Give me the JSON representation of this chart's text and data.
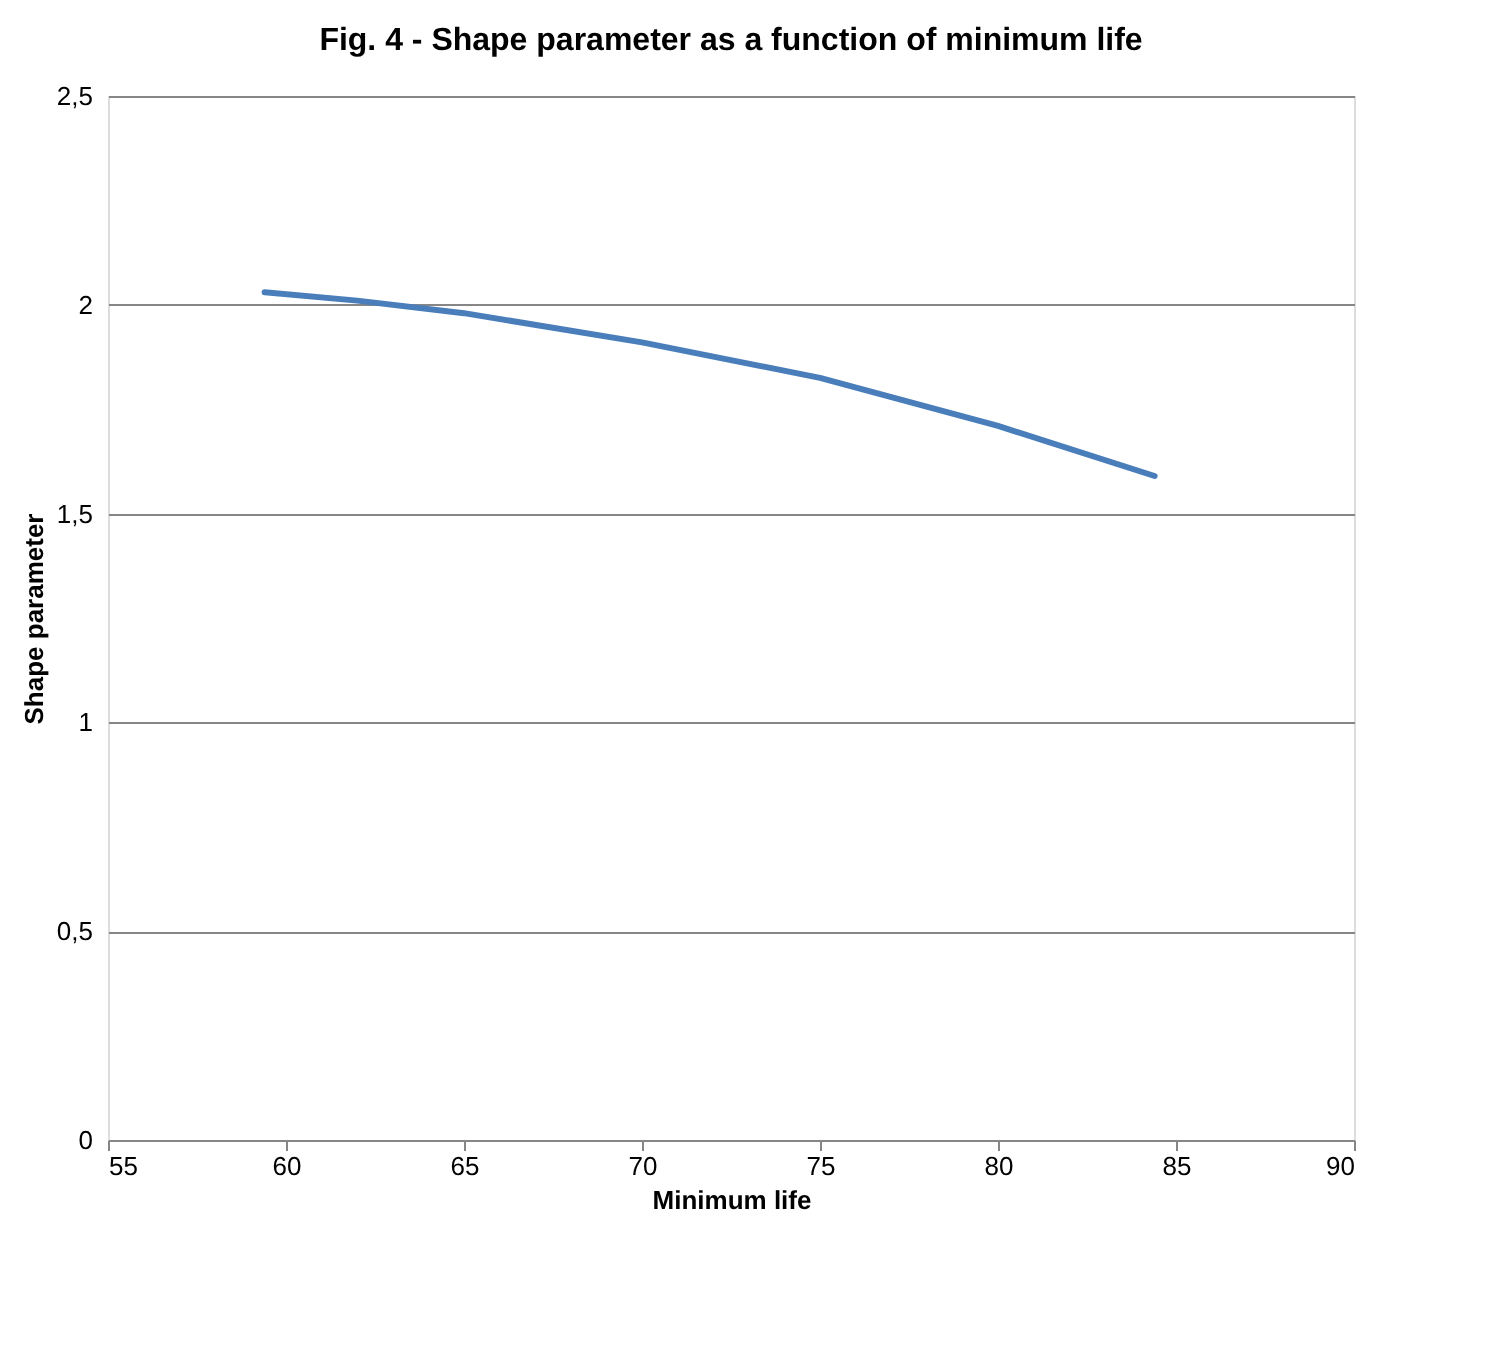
{
  "chart_data": {
    "type": "line",
    "title": "Fig. 4 - Shape parameter as a function of minimum life",
    "xlabel": "Minimum life",
    "ylabel": "Shape parameter",
    "series": [
      {
        "color": "#4a7ebb",
        "x": [
          59.4,
          62,
          65,
          70,
          75,
          80,
          84.4
        ],
        "values": [
          2.03,
          2.01,
          1.98,
          1.91,
          1.825,
          1.71,
          1.59
        ]
      }
    ],
    "xlim": [
      55,
      90
    ],
    "xticks": [
      55,
      60,
      65,
      70,
      75,
      80,
      85,
      90
    ],
    "ylim": [
      0,
      2.5
    ],
    "yticks": [
      0,
      {
        "value": 0.5,
        "label": "0,5"
      },
      1,
      {
        "value": 1.5,
        "label": "1,5"
      },
      2,
      {
        "value": 2.5,
        "label": "2,5"
      }
    ],
    "grid": "y",
    "marker": "none",
    "line_style": "solid"
  }
}
